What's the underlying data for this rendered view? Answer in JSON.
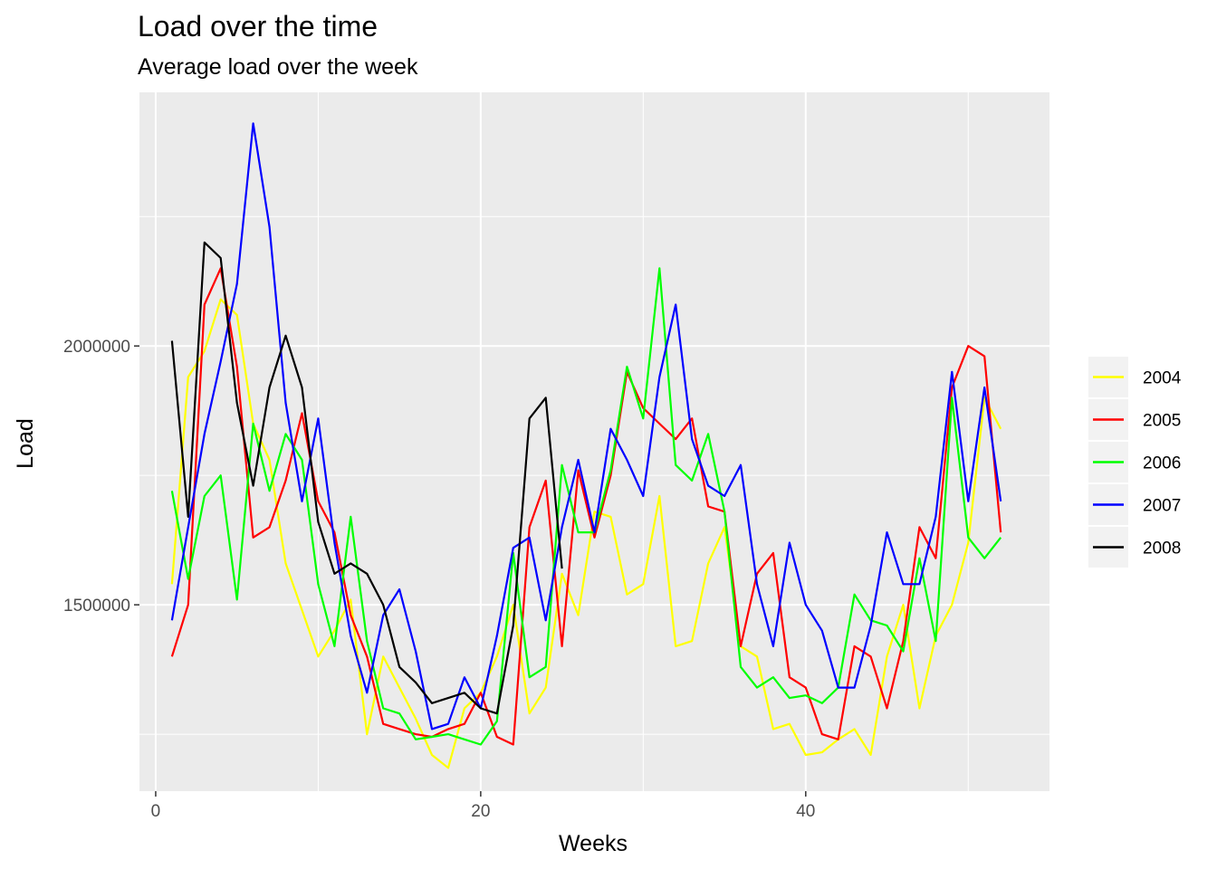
{
  "chart_data": {
    "type": "line",
    "title": "Load over the time",
    "subtitle": "Average load over the week",
    "xlabel": "Weeks",
    "ylabel": "Load",
    "xlim": [
      -1,
      55
    ],
    "ylim": [
      1140000,
      2490000
    ],
    "x_ticks": [
      0,
      20,
      40
    ],
    "x_tick_labels": [
      "0",
      "20",
      "40"
    ],
    "y_ticks": [
      1500000,
      2000000
    ],
    "y_tick_labels": [
      "1500000",
      "2000000"
    ],
    "grid": true,
    "legend_position": "right",
    "series": [
      {
        "name": "2004",
        "color": "#ffff00",
        "x": [
          1,
          2,
          3,
          4,
          5,
          6,
          7,
          8,
          9,
          10,
          11,
          12,
          13,
          14,
          15,
          16,
          17,
          18,
          19,
          20,
          21,
          22,
          23,
          24,
          25,
          26,
          27,
          28,
          29,
          30,
          31,
          32,
          33,
          34,
          35,
          36,
          37,
          38,
          39,
          40,
          41,
          42,
          43,
          44,
          45,
          46,
          47,
          48,
          49,
          50,
          51,
          52
        ],
        "y": [
          1540000,
          1940000,
          1990000,
          2090000,
          2060000,
          1850000,
          1780000,
          1580000,
          1490000,
          1400000,
          1450000,
          1510000,
          1250000,
          1400000,
          1340000,
          1280000,
          1210000,
          1185000,
          1300000,
          1330000,
          1400000,
          1500000,
          1290000,
          1340000,
          1560000,
          1480000,
          1680000,
          1670000,
          1520000,
          1540000,
          1710000,
          1420000,
          1430000,
          1580000,
          1650000,
          1420000,
          1400000,
          1260000,
          1270000,
          1210000,
          1215000,
          1240000,
          1260000,
          1210000,
          1400000,
          1500000,
          1300000,
          1440000,
          1500000,
          1620000,
          1900000,
          1840000
        ]
      },
      {
        "name": "2005",
        "color": "#ff0000",
        "x": [
          1,
          2,
          3,
          4,
          5,
          6,
          7,
          8,
          9,
          10,
          11,
          12,
          13,
          14,
          15,
          16,
          17,
          18,
          19,
          20,
          21,
          22,
          23,
          24,
          25,
          26,
          27,
          28,
          29,
          30,
          31,
          32,
          33,
          34,
          35,
          36,
          37,
          38,
          39,
          40,
          41,
          42,
          43,
          44,
          45,
          46,
          47,
          48,
          49,
          50,
          51,
          52
        ],
        "y": [
          1400000,
          1500000,
          2080000,
          2150000,
          1960000,
          1630000,
          1650000,
          1740000,
          1870000,
          1700000,
          1640000,
          1480000,
          1400000,
          1270000,
          1260000,
          1250000,
          1245000,
          1260000,
          1270000,
          1330000,
          1245000,
          1230000,
          1650000,
          1740000,
          1420000,
          1760000,
          1630000,
          1750000,
          1950000,
          1880000,
          1850000,
          1820000,
          1860000,
          1690000,
          1680000,
          1420000,
          1560000,
          1600000,
          1360000,
          1340000,
          1250000,
          1240000,
          1420000,
          1400000,
          1300000,
          1430000,
          1650000,
          1590000,
          1920000,
          2000000,
          1980000,
          1640000
        ]
      },
      {
        "name": "2006",
        "color": "#00ff00",
        "x": [
          1,
          2,
          3,
          4,
          5,
          6,
          7,
          8,
          9,
          10,
          11,
          12,
          13,
          14,
          15,
          16,
          17,
          18,
          19,
          20,
          21,
          22,
          23,
          24,
          25,
          26,
          27,
          28,
          29,
          30,
          31,
          32,
          33,
          34,
          35,
          36,
          37,
          38,
          39,
          40,
          41,
          42,
          43,
          44,
          45,
          46,
          47,
          48,
          49,
          50,
          51,
          52
        ],
        "y": [
          1720000,
          1550000,
          1710000,
          1750000,
          1510000,
          1850000,
          1720000,
          1830000,
          1780000,
          1540000,
          1420000,
          1670000,
          1430000,
          1300000,
          1290000,
          1240000,
          1245000,
          1250000,
          1240000,
          1230000,
          1275000,
          1600000,
          1360000,
          1380000,
          1770000,
          1640000,
          1640000,
          1760000,
          1960000,
          1860000,
          2150000,
          1770000,
          1740000,
          1830000,
          1680000,
          1380000,
          1340000,
          1360000,
          1320000,
          1325000,
          1310000,
          1340000,
          1520000,
          1470000,
          1460000,
          1410000,
          1590000,
          1430000,
          1900000,
          1630000,
          1590000,
          1630000
        ]
      },
      {
        "name": "2007",
        "color": "#0000ff",
        "x": [
          1,
          2,
          3,
          4,
          5,
          6,
          7,
          8,
          9,
          10,
          11,
          12,
          13,
          14,
          15,
          16,
          17,
          18,
          19,
          20,
          21,
          22,
          23,
          24,
          25,
          26,
          27,
          28,
          29,
          30,
          31,
          32,
          33,
          34,
          35,
          36,
          37,
          38,
          39,
          40,
          41,
          42,
          43,
          44,
          45,
          46,
          47,
          48,
          49,
          50,
          51,
          52
        ],
        "y": [
          1470000,
          1650000,
          1830000,
          1970000,
          2120000,
          2430000,
          2230000,
          1890000,
          1700000,
          1860000,
          1620000,
          1440000,
          1330000,
          1480000,
          1530000,
          1410000,
          1260000,
          1270000,
          1360000,
          1300000,
          1440000,
          1610000,
          1630000,
          1470000,
          1650000,
          1780000,
          1640000,
          1840000,
          1780000,
          1710000,
          1940000,
          2080000,
          1820000,
          1730000,
          1710000,
          1770000,
          1540000,
          1420000,
          1620000,
          1500000,
          1450000,
          1340000,
          1340000,
          1460000,
          1640000,
          1540000,
          1540000,
          1670000,
          1950000,
          1700000,
          1920000,
          1700000
        ]
      },
      {
        "name": "2008",
        "color": "#000000",
        "x": [
          1,
          2,
          3,
          4,
          5,
          6,
          7,
          8,
          9,
          10,
          11,
          12,
          13,
          14,
          15,
          16,
          17,
          18,
          19,
          20,
          21,
          22,
          23,
          24,
          25
        ],
        "y": [
          2010000,
          1670000,
          2200000,
          2170000,
          1890000,
          1730000,
          1920000,
          2020000,
          1920000,
          1660000,
          1560000,
          1580000,
          1560000,
          1500000,
          1380000,
          1350000,
          1310000,
          1320000,
          1330000,
          1300000,
          1290000,
          1460000,
          1860000,
          1900000,
          1570000
        ]
      }
    ]
  }
}
